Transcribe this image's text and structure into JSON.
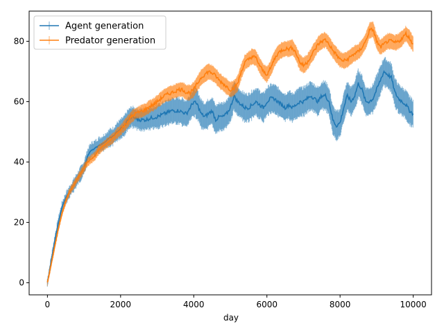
{
  "chart_data": {
    "type": "line",
    "title": "",
    "xlabel": "day",
    "ylabel": "",
    "xlim": [
      -500,
      10500
    ],
    "ylim": [
      -4,
      90
    ],
    "xticks": [
      0,
      2000,
      4000,
      6000,
      8000,
      10000
    ],
    "yticks": [
      0,
      20,
      40,
      60,
      80
    ],
    "grid": false,
    "legend_position": "upper-left",
    "series": [
      {
        "name": "Agent generation",
        "color": "#1f77b4",
        "x": [
          0,
          100,
          200,
          300,
          400,
          500,
          600,
          700,
          800,
          900,
          1000,
          1100,
          1200,
          1300,
          1400,
          1500,
          1600,
          1700,
          1800,
          1900,
          2000,
          2100,
          2200,
          2300,
          2400,
          2500,
          2600,
          2700,
          2800,
          3000,
          3200,
          3400,
          3600,
          3800,
          4000,
          4100,
          4200,
          4300,
          4400,
          4500,
          4600,
          4700,
          4800,
          4900,
          5000,
          5100,
          5200,
          5300,
          5400,
          5500,
          5600,
          5700,
          5800,
          5900,
          6000,
          6100,
          6200,
          6300,
          6400,
          6500,
          6600,
          6700,
          6800,
          6900,
          7000,
          7100,
          7200,
          7300,
          7400,
          7500,
          7600,
          7700,
          7800,
          7900,
          8000,
          8100,
          8200,
          8300,
          8400,
          8500,
          8600,
          8700,
          8800,
          8900,
          9000,
          9100,
          9200,
          9300,
          9400,
          9500,
          9600,
          9700,
          9800,
          9900,
          10000
        ],
        "y": [
          0,
          7,
          14,
          20,
          25,
          28,
          30,
          32,
          34,
          36,
          38,
          42,
          44,
          44.5,
          45.5,
          46,
          47,
          48,
          48.5,
          50,
          51,
          52,
          54,
          55,
          54.5,
          54,
          54,
          54,
          54.5,
          55,
          56,
          57,
          57,
          56,
          60,
          59,
          56,
          55,
          56,
          57,
          54,
          55,
          55,
          56,
          58,
          62,
          60,
          59,
          58,
          58,
          59,
          60,
          59,
          58,
          60,
          61,
          61,
          60,
          59,
          58,
          59,
          58,
          59,
          60,
          60,
          61,
          62,
          61,
          60,
          62,
          62,
          60,
          54,
          52,
          53,
          58,
          62,
          60,
          62,
          66,
          64,
          60,
          60,
          61,
          64,
          67,
          70,
          69,
          68,
          63,
          61,
          60,
          59,
          57,
          56
        ]
      },
      {
        "name": "Predator generation",
        "color": "#ff7f0e",
        "x": [
          0,
          100,
          200,
          300,
          400,
          500,
          600,
          700,
          800,
          900,
          1000,
          1100,
          1200,
          1300,
          1400,
          1500,
          1600,
          1700,
          1800,
          1900,
          2000,
          2100,
          2200,
          2300,
          2400,
          2500,
          2600,
          2700,
          2800,
          2900,
          3000,
          3100,
          3200,
          3300,
          3400,
          3500,
          3600,
          3700,
          3800,
          3900,
          4000,
          4100,
          4200,
          4300,
          4400,
          4500,
          4600,
          4700,
          4800,
          4900,
          5000,
          5100,
          5200,
          5300,
          5400,
          5500,
          5600,
          5700,
          5800,
          5900,
          6000,
          6100,
          6200,
          6300,
          6400,
          6500,
          6600,
          6700,
          6800,
          6900,
          7000,
          7100,
          7200,
          7300,
          7400,
          7500,
          7600,
          7700,
          7800,
          7900,
          8000,
          8100,
          8200,
          8300,
          8400,
          8500,
          8600,
          8700,
          8800,
          8900,
          9000,
          9100,
          9200,
          9300,
          9400,
          9500,
          9600,
          9700,
          9800,
          9900,
          10000
        ],
        "y": [
          0,
          6,
          12,
          18,
          23,
          27,
          30,
          32,
          34,
          36,
          38,
          40,
          41,
          42,
          44,
          45,
          46,
          47,
          48,
          49.5,
          50.5,
          52,
          53.5,
          55,
          56,
          56.5,
          57,
          57.5,
          58.5,
          59,
          60,
          61,
          62,
          62.5,
          63,
          63.5,
          64,
          64,
          63,
          63,
          64,
          66,
          68,
          69,
          70,
          69.5,
          68.5,
          67,
          66,
          65,
          64,
          64.5,
          66,
          70,
          73,
          74,
          75,
          74.5,
          72,
          70,
          69,
          71,
          74,
          76,
          77,
          77.5,
          77.5,
          78,
          76,
          73,
          72,
          73,
          75,
          77,
          79,
          80,
          80.5,
          79,
          77,
          75.5,
          74,
          73.5,
          74,
          75,
          76,
          76.5,
          78,
          80,
          83.5,
          84,
          80,
          78,
          79,
          80,
          80,
          79.5,
          80,
          81,
          82.5,
          81,
          79
        ]
      }
    ]
  }
}
